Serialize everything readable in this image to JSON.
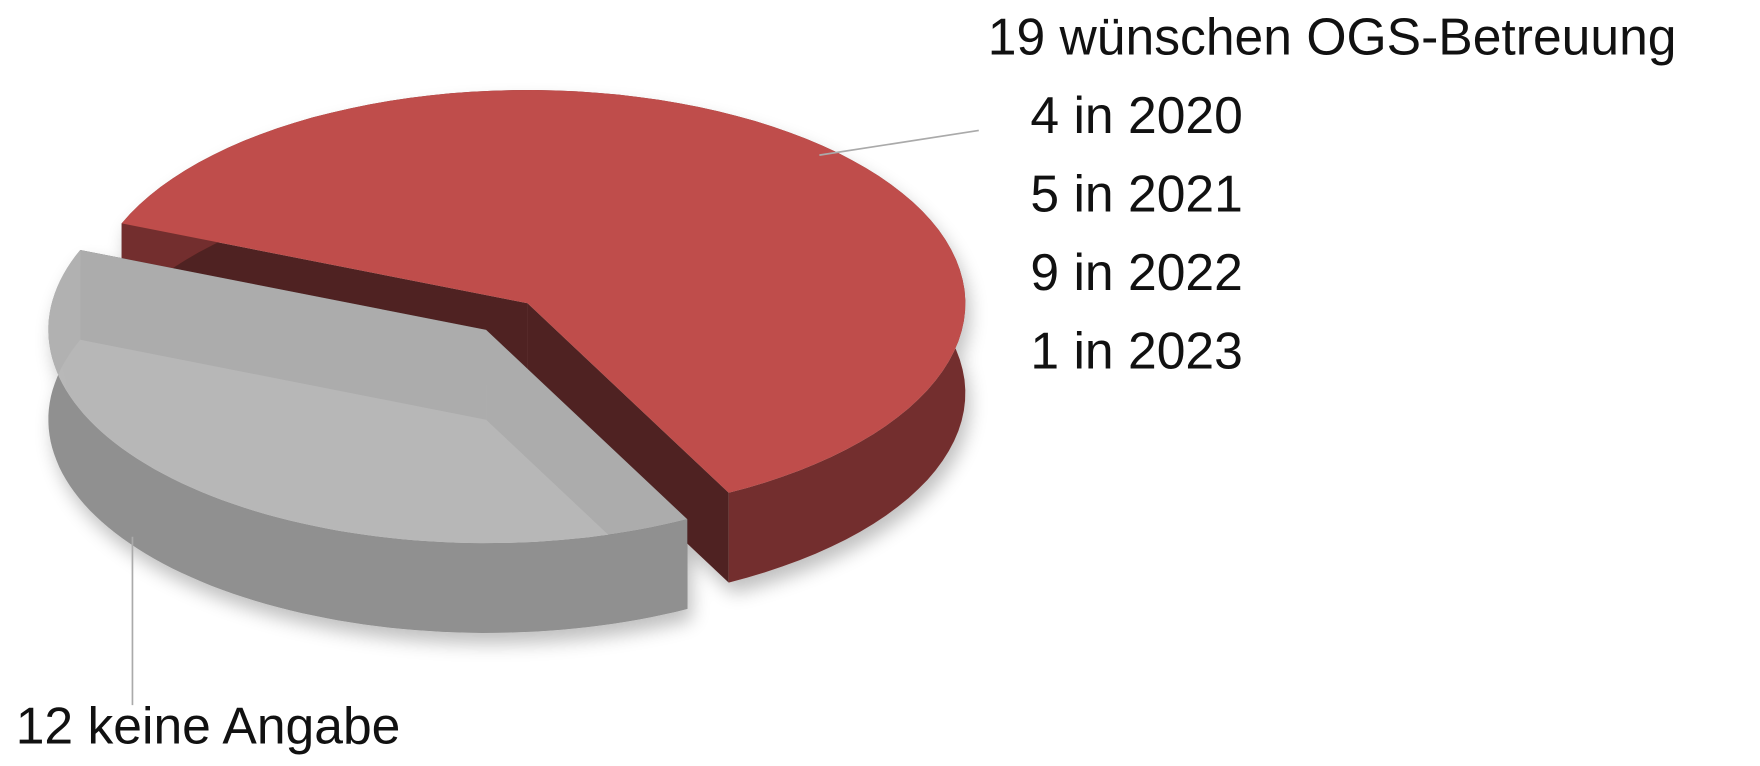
{
  "chart_data": {
    "type": "pie3d",
    "values": [
      19,
      12
    ],
    "value_labels": [
      "19 wünschen OGS-Betreuung",
      "12 keine Angabe"
    ],
    "colors": [
      "#bf4e4b",
      "#b4b4b4"
    ],
    "annotations": [
      "4 in 2020",
      "5 in 2021",
      "9 in 2022",
      "1 in 2023"
    ]
  }
}
